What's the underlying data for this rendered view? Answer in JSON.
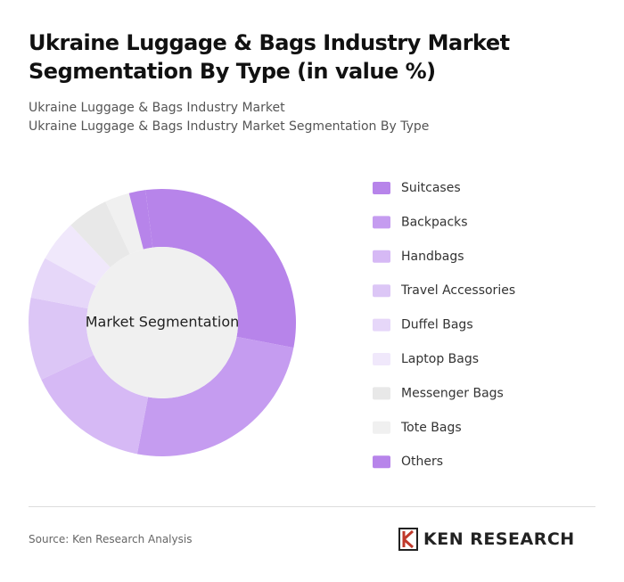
{
  "chart_data": {
    "type": "donut",
    "title": "Ukraine Luggage & Bags Industry Market Segmentation By Type (in value %)",
    "subtitle": "Ukraine Luggage & Bags Industry Market",
    "subtitle_2": "Ukraine Luggage & Bags Industry Market Segmentation By Type",
    "center_label": "Market Segmentation",
    "categories": [
      "Suitcases",
      "Backpacks",
      "Handbags",
      "Travel Accessories",
      "Duffel Bags",
      "Laptop Bags",
      "Messenger Bags",
      "Tote Bags",
      "Others"
    ],
    "values": [
      30,
      25,
      15,
      10,
      5,
      5,
      5,
      3,
      2
    ],
    "colors": [
      "#b784ea",
      "#c59cf0",
      "#d6b9f5",
      "#dcc6f6",
      "#e6d7f9",
      "#f0e8fb",
      "#e8e8e8",
      "#f0f0f0",
      "#b784ea"
    ]
  },
  "source": "Source: Ken Research Analysis",
  "brand": "KEN RESEARCH"
}
